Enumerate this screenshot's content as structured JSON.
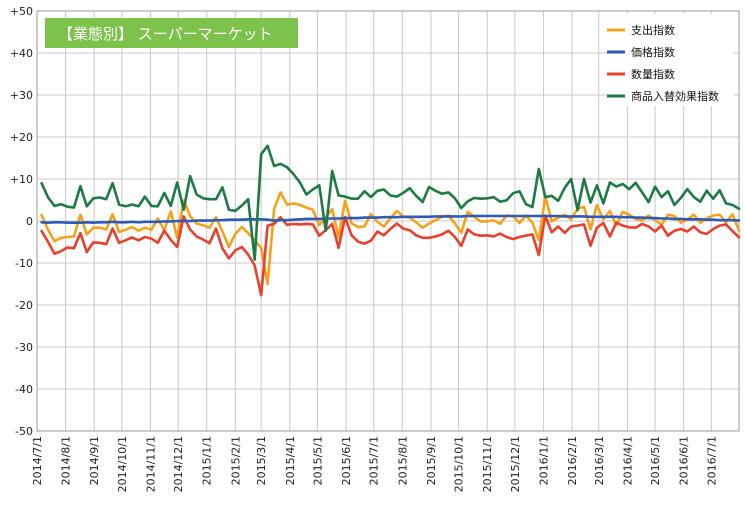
{
  "chart_data": {
    "type": "line",
    "title": "【業態別】 スーパーマーケット",
    "title_color": "#7dc24b",
    "ylim": [
      -50,
      50
    ],
    "yticks": [
      {
        "value": 50,
        "label": "+50"
      },
      {
        "value": 40,
        "label": "+40"
      },
      {
        "value": 30,
        "label": "+30"
      },
      {
        "value": 20,
        "label": "+20"
      },
      {
        "value": 10,
        "label": "+10"
      },
      {
        "value": 0,
        "label": "0"
      },
      {
        "value": -10,
        "label": "-10"
      },
      {
        "value": -20,
        "label": "-20"
      },
      {
        "value": -30,
        "label": "-30"
      },
      {
        "value": -40,
        "label": "-40"
      },
      {
        "value": -50,
        "label": "-50"
      }
    ],
    "x_start": "2014-07-01",
    "x_end": "2016-07-31",
    "xticks": [
      {
        "date": "2014-07-01",
        "label": "2014/7/1"
      },
      {
        "date": "2014-08-01",
        "label": "2014/8/1"
      },
      {
        "date": "2014-09-01",
        "label": "2014/9/1"
      },
      {
        "date": "2014-10-01",
        "label": "2014/10/1"
      },
      {
        "date": "2014-11-01",
        "label": "2014/11/1"
      },
      {
        "date": "2014-12-01",
        "label": "2014/12/1"
      },
      {
        "date": "2015-01-01",
        "label": "2015/1/1"
      },
      {
        "date": "2015-02-01",
        "label": "2015/2/1"
      },
      {
        "date": "2015-03-01",
        "label": "2015/3/1"
      },
      {
        "date": "2015-04-01",
        "label": "2015/4/1"
      },
      {
        "date": "2015-05-01",
        "label": "2015/5/1"
      },
      {
        "date": "2015-06-01",
        "label": "2015/6/1"
      },
      {
        "date": "2015-07-01",
        "label": "2015/7/1"
      },
      {
        "date": "2015-08-01",
        "label": "2015/8/1"
      },
      {
        "date": "2015-09-01",
        "label": "2015/9/1"
      },
      {
        "date": "2015-10-01",
        "label": "2015/10/1"
      },
      {
        "date": "2015-11-01",
        "label": "2015/11/1"
      },
      {
        "date": "2015-12-01",
        "label": "2015/12/1"
      },
      {
        "date": "2016-01-01",
        "label": "2016/1/1"
      },
      {
        "date": "2016-02-01",
        "label": "2016/2/1"
      },
      {
        "date": "2016-03-01",
        "label": "2016/3/1"
      },
      {
        "date": "2016-04-01",
        "label": "2016/4/1"
      },
      {
        "date": "2016-05-01",
        "label": "2016/5/1"
      },
      {
        "date": "2016-06-01",
        "label": "2016/6/1"
      },
      {
        "date": "2016-07-01",
        "label": "2016/7/1"
      }
    ],
    "grid": true,
    "legend_position": "top-right",
    "x": [
      "2014-07-06",
      "2014-07-13",
      "2014-07-20",
      "2014-07-27",
      "2014-08-03",
      "2014-08-10",
      "2014-08-17",
      "2014-08-24",
      "2014-08-31",
      "2014-09-07",
      "2014-09-14",
      "2014-09-21",
      "2014-09-28",
      "2014-10-05",
      "2014-10-12",
      "2014-10-19",
      "2014-10-26",
      "2014-11-02",
      "2014-11-09",
      "2014-11-16",
      "2014-11-23",
      "2014-11-30",
      "2014-12-07",
      "2014-12-14",
      "2014-12-21",
      "2014-12-28",
      "2015-01-04",
      "2015-01-11",
      "2015-01-18",
      "2015-01-25",
      "2015-02-01",
      "2015-02-08",
      "2015-02-15",
      "2015-02-22",
      "2015-03-01",
      "2015-03-08",
      "2015-03-15",
      "2015-03-22",
      "2015-03-29",
      "2015-04-05",
      "2015-04-12",
      "2015-04-19",
      "2015-04-26",
      "2015-05-03",
      "2015-05-10",
      "2015-05-17",
      "2015-05-24",
      "2015-05-31",
      "2015-06-07",
      "2015-06-14",
      "2015-06-21",
      "2015-06-28",
      "2015-07-05",
      "2015-07-12",
      "2015-07-19",
      "2015-07-26",
      "2015-08-02",
      "2015-08-09",
      "2015-08-16",
      "2015-08-23",
      "2015-08-30",
      "2015-09-06",
      "2015-09-13",
      "2015-09-20",
      "2015-09-27",
      "2015-10-04",
      "2015-10-11",
      "2015-10-18",
      "2015-10-25",
      "2015-11-01",
      "2015-11-08",
      "2015-11-15",
      "2015-11-22",
      "2015-11-29",
      "2015-12-06",
      "2015-12-13",
      "2015-12-20",
      "2015-12-27",
      "2016-01-03",
      "2016-01-10",
      "2016-01-17",
      "2016-01-24",
      "2016-01-31",
      "2016-02-07",
      "2016-02-14",
      "2016-02-21",
      "2016-02-28",
      "2016-03-06",
      "2016-03-13",
      "2016-03-20",
      "2016-03-27",
      "2016-04-03",
      "2016-04-10",
      "2016-04-17",
      "2016-04-24",
      "2016-05-01",
      "2016-05-08",
      "2016-05-15",
      "2016-05-22",
      "2016-05-29",
      "2016-06-05",
      "2016-06-12",
      "2016-06-19",
      "2016-06-26",
      "2016-07-03",
      "2016-07-10",
      "2016-07-17",
      "2016-07-24",
      "2016-07-31"
    ],
    "series": [
      {
        "name": "支出指数",
        "color": "#f5a21b",
        "values": [
          1.4,
          -2.1,
          -4.8,
          -4.0,
          -3.8,
          -3.7,
          1.5,
          -3.2,
          -1.6,
          -1.6,
          -2.0,
          1.6,
          -2.6,
          -2.1,
          -1.4,
          -2.3,
          -1.6,
          -2.1,
          0.6,
          -2.2,
          2.3,
          -4.0,
          4.9,
          1.2,
          -0.6,
          -1.0,
          -1.6,
          0.9,
          -2.5,
          -6.2,
          -3.1,
          -1.4,
          -2.9,
          -4.6,
          -6.4,
          -15.0,
          2.8,
          6.8,
          3.9,
          4.2,
          3.8,
          3.2,
          2.7,
          -1.0,
          0.9,
          2.8,
          -3.9,
          4.8,
          -0.6,
          -1.4,
          -1.3,
          1.7,
          -0.2,
          -1.3,
          0.6,
          2.4,
          1.1,
          0.8,
          -0.3,
          -1.6,
          -0.6,
          0.2,
          1.0,
          1.3,
          -0.6,
          -2.8,
          2.2,
          1.0,
          -0.1,
          -0.1,
          0.2,
          -0.7,
          1.3,
          1.2,
          -0.5,
          1.3,
          -0.4,
          -4.6,
          5.8,
          -0.1,
          0.8,
          1.5,
          0.4,
          2.9,
          3.4,
          -2.0,
          3.8,
          0.4,
          2.4,
          -1.0,
          2.2,
          1.5,
          0.5,
          0.1,
          1.3,
          0.2,
          -0.9,
          1.5,
          1.2,
          -0.4,
          0.3,
          1.5,
          -0.4,
          0.6,
          1.3,
          1.5,
          -0.3,
          1.6,
          -2.3
        ]
      },
      {
        "name": "価格指数",
        "color": "#2e5ab5",
        "values": [
          -0.3,
          -0.4,
          -0.3,
          -0.3,
          -0.4,
          -0.4,
          -0.4,
          -0.3,
          -0.4,
          -0.3,
          -0.3,
          -0.2,
          -0.3,
          -0.3,
          -0.2,
          -0.3,
          -0.2,
          -0.2,
          -0.2,
          -0.1,
          -0.1,
          0.0,
          0.0,
          0.0,
          0.1,
          0.1,
          0.1,
          0.2,
          0.2,
          0.3,
          0.3,
          0.3,
          0.4,
          0.4,
          0.4,
          0.3,
          0.1,
          0.2,
          0.2,
          0.3,
          0.4,
          0.5,
          0.5,
          0.5,
          0.6,
          0.6,
          0.6,
          0.7,
          0.7,
          0.7,
          0.8,
          0.8,
          0.8,
          0.9,
          0.9,
          0.9,
          1.0,
          1.0,
          1.0,
          1.0,
          1.0,
          1.1,
          1.1,
          1.1,
          1.1,
          1.1,
          1.2,
          1.2,
          1.2,
          1.2,
          1.2,
          1.2,
          1.2,
          1.2,
          1.2,
          1.2,
          1.2,
          1.2,
          1.2,
          1.2,
          1.2,
          1.1,
          1.1,
          1.1,
          1.1,
          1.0,
          1.0,
          1.0,
          1.0,
          1.0,
          0.9,
          0.9,
          0.8,
          0.8,
          0.7,
          0.7,
          0.6,
          0.6,
          0.5,
          0.5,
          0.4,
          0.4,
          0.4,
          0.3,
          0.3,
          0.2,
          0.2,
          0.2,
          0.1
        ]
      },
      {
        "name": "数量指数",
        "color": "#e8402c",
        "values": [
          -2.4,
          -5.0,
          -7.8,
          -7.2,
          -6.3,
          -6.5,
          -2.9,
          -7.4,
          -5.1,
          -5.2,
          -5.5,
          -1.8,
          -5.2,
          -4.6,
          -3.9,
          -4.6,
          -3.8,
          -4.2,
          -5.2,
          -2.3,
          -4.5,
          -6.2,
          1.1,
          -2.0,
          -3.7,
          -4.4,
          -5.3,
          -1.8,
          -6.5,
          -8.9,
          -7.0,
          -6.2,
          -8.0,
          -10.6,
          -17.7,
          -1.1,
          -0.7,
          0.9,
          -0.9,
          -0.7,
          -0.8,
          -0.7,
          -0.8,
          -3.5,
          -2.2,
          -0.7,
          -6.4,
          0.9,
          -3.4,
          -4.9,
          -5.4,
          -4.7,
          -2.5,
          -3.4,
          -1.9,
          -0.6,
          -1.8,
          -2.2,
          -3.4,
          -4.0,
          -4.0,
          -3.7,
          -3.2,
          -2.3,
          -3.8,
          -5.9,
          -2.0,
          -3.2,
          -3.5,
          -3.4,
          -3.7,
          -3.0,
          -3.8,
          -4.3,
          -3.8,
          -3.5,
          -3.2,
          -8.1,
          1.3,
          -2.7,
          -1.3,
          -2.8,
          -1.3,
          -1.1,
          -0.8,
          -5.9,
          -1.6,
          -0.5,
          -3.7,
          -0.4,
          -1.1,
          -1.5,
          -1.6,
          -0.7,
          -1.3,
          -2.5,
          -1.1,
          -3.5,
          -2.3,
          -1.9,
          -2.5,
          -1.3,
          -2.7,
          -3.1,
          -1.9,
          -1.1,
          -0.8,
          -2.4,
          -3.9
        ]
      },
      {
        "name": "商品入替効果指数",
        "color": "#1e7a45",
        "values": [
          9.0,
          5.6,
          3.6,
          4.0,
          3.4,
          3.2,
          8.3,
          3.5,
          5.4,
          5.6,
          5.2,
          9.0,
          3.9,
          3.5,
          3.9,
          3.5,
          5.8,
          3.6,
          3.5,
          6.7,
          3.6,
          9.2,
          2.7,
          10.7,
          6.3,
          5.4,
          5.2,
          5.2,
          8.0,
          2.7,
          2.4,
          3.7,
          5.2,
          -9.2,
          15.9,
          17.9,
          13.1,
          13.6,
          12.8,
          11.2,
          9.2,
          6.3,
          7.5,
          8.5,
          -2.3,
          11.9,
          6.1,
          5.8,
          5.3,
          5.3,
          7.1,
          5.7,
          7.2,
          7.5,
          6.1,
          5.8,
          6.7,
          7.8,
          6.0,
          4.5,
          8.1,
          7.2,
          6.5,
          6.8,
          5.4,
          3.1,
          4.7,
          5.5,
          5.3,
          5.4,
          5.7,
          4.6,
          4.9,
          6.6,
          7.1,
          4.0,
          3.3,
          12.4,
          5.7,
          6.0,
          4.8,
          7.9,
          10.0,
          2.6,
          10.0,
          4.4,
          8.5,
          4.2,
          9.2,
          8.2,
          8.8,
          7.6,
          9.1,
          6.8,
          4.5,
          8.2,
          5.7,
          7.1,
          3.8,
          5.5,
          7.6,
          5.7,
          4.6,
          7.2,
          5.3,
          7.3,
          4.2,
          3.8,
          2.9
        ]
      }
    ]
  }
}
